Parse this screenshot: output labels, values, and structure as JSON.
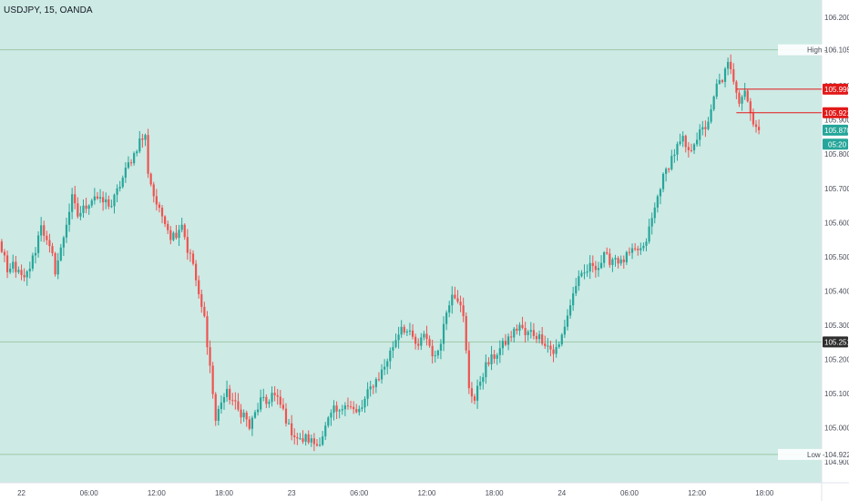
{
  "symbol_title": "USDJPY, 15, OANDA",
  "colors": {
    "background": "#cdeae5",
    "up": "#26a69a",
    "down": "#ef5350",
    "axis_bg": "#ffffff",
    "axis_text": "#4a4e59",
    "ref_line": "#9fc9a8",
    "red_tag": "#e31919",
    "green_tag": "#26a69a",
    "dark_tag": "#2e2e2e"
  },
  "chart_data": {
    "type": "candlestick",
    "title": "USDJPY, 15, OANDA",
    "ylim": [
      104.87,
      106.23
    ],
    "y_ticks": [
      "106.200",
      "106.100",
      "106.000",
      "105.900",
      "105.800",
      "105.700",
      "105.600",
      "105.500",
      "105.400",
      "105.300",
      "105.200",
      "105.100",
      "105.000",
      "104.900"
    ],
    "x_ticks": [
      {
        "label": "22",
        "bar": 8
      },
      {
        "label": "06:00",
        "bar": 32
      },
      {
        "label": "12:00",
        "bar": 56
      },
      {
        "label": "18:00",
        "bar": 80
      },
      {
        "label": "23",
        "bar": 104
      },
      {
        "label": "06:00",
        "bar": 128
      },
      {
        "label": "12:00",
        "bar": 152
      },
      {
        "label": "18:00",
        "bar": 176
      },
      {
        "label": "24",
        "bar": 200
      },
      {
        "label": "06:00",
        "bar": 224
      },
      {
        "label": "12:00",
        "bar": 248
      },
      {
        "label": "18:00",
        "bar": 272
      }
    ],
    "x_axis_offset_bars": 0,
    "close_anchors": [
      [
        0,
        105.54
      ],
      [
        2,
        105.5
      ],
      [
        3,
        105.44
      ],
      [
        5,
        105.48
      ],
      [
        7,
        105.45
      ],
      [
        9,
        105.43
      ],
      [
        11,
        105.47
      ],
      [
        13,
        105.52
      ],
      [
        15,
        105.6
      ],
      [
        17,
        105.54
      ],
      [
        19,
        105.5
      ],
      [
        20,
        105.46
      ],
      [
        22,
        105.52
      ],
      [
        24,
        105.6
      ],
      [
        26,
        105.67
      ],
      [
        28,
        105.62
      ],
      [
        30,
        105.64
      ],
      [
        32,
        105.66
      ],
      [
        34,
        105.68
      ],
      [
        36,
        105.66
      ],
      [
        38,
        105.66
      ],
      [
        40,
        105.65
      ],
      [
        42,
        105.69
      ],
      [
        44,
        105.73
      ],
      [
        46,
        105.77
      ],
      [
        48,
        105.8
      ],
      [
        50,
        105.84
      ],
      [
        52,
        105.85
      ],
      [
        53,
        105.75
      ],
      [
        55,
        105.68
      ],
      [
        57,
        105.63
      ],
      [
        59,
        105.61
      ],
      [
        61,
        105.56
      ],
      [
        63,
        105.57
      ],
      [
        65,
        105.6
      ],
      [
        67,
        105.52
      ],
      [
        69,
        105.48
      ],
      [
        71,
        105.38
      ],
      [
        73,
        105.32
      ],
      [
        75,
        105.18
      ],
      [
        76,
        105.1
      ],
      [
        77,
        105.02
      ],
      [
        79,
        105.08
      ],
      [
        81,
        105.1
      ],
      [
        83,
        105.08
      ],
      [
        85,
        105.05
      ],
      [
        87,
        105.04
      ],
      [
        89,
        105.0
      ],
      [
        91,
        105.04
      ],
      [
        93,
        105.08
      ],
      [
        95,
        105.07
      ],
      [
        97,
        105.1
      ],
      [
        99,
        105.08
      ],
      [
        101,
        105.05
      ],
      [
        103,
        105.0
      ],
      [
        105,
        104.98
      ],
      [
        107,
        104.96
      ],
      [
        109,
        104.97
      ],
      [
        111,
        104.96
      ],
      [
        113,
        104.95
      ],
      [
        115,
        104.98
      ],
      [
        117,
        105.02
      ],
      [
        119,
        105.05
      ],
      [
        121,
        105.04
      ],
      [
        123,
        105.08
      ],
      [
        125,
        105.06
      ],
      [
        127,
        105.04
      ],
      [
        129,
        105.06
      ],
      [
        131,
        105.1
      ],
      [
        133,
        105.13
      ],
      [
        135,
        105.15
      ],
      [
        137,
        105.18
      ],
      [
        139,
        105.22
      ],
      [
        141,
        105.26
      ],
      [
        143,
        105.3
      ],
      [
        145,
        105.28
      ],
      [
        147,
        105.26
      ],
      [
        149,
        105.23
      ],
      [
        151,
        105.28
      ],
      [
        153,
        105.24
      ],
      [
        155,
        105.2
      ],
      [
        157,
        105.26
      ],
      [
        159,
        105.34
      ],
      [
        161,
        105.4
      ],
      [
        163,
        105.38
      ],
      [
        165,
        105.32
      ],
      [
        166,
        105.22
      ],
      [
        167,
        105.12
      ],
      [
        169,
        105.08
      ],
      [
        171,
        105.14
      ],
      [
        173,
        105.18
      ],
      [
        175,
        105.2
      ],
      [
        177,
        105.22
      ],
      [
        179,
        105.24
      ],
      [
        181,
        105.26
      ],
      [
        183,
        105.28
      ],
      [
        185,
        105.3
      ],
      [
        187,
        105.27
      ],
      [
        189,
        105.28
      ],
      [
        191,
        105.27
      ],
      [
        193,
        105.26
      ],
      [
        195,
        105.24
      ],
      [
        197,
        105.22
      ],
      [
        199,
        105.24
      ],
      [
        201,
        105.3
      ],
      [
        203,
        105.36
      ],
      [
        205,
        105.42
      ],
      [
        207,
        105.44
      ],
      [
        209,
        105.46
      ],
      [
        211,
        105.48
      ],
      [
        213,
        105.47
      ],
      [
        215,
        105.5
      ],
      [
        217,
        105.49
      ],
      [
        219,
        105.5
      ],
      [
        221,
        105.48
      ],
      [
        223,
        105.5
      ],
      [
        225,
        105.51
      ],
      [
        227,
        105.52
      ],
      [
        229,
        105.52
      ],
      [
        231,
        105.58
      ],
      [
        233,
        105.64
      ],
      [
        235,
        105.71
      ],
      [
        237,
        105.75
      ],
      [
        239,
        105.79
      ],
      [
        241,
        105.82
      ],
      [
        243,
        105.84
      ],
      [
        245,
        105.8
      ],
      [
        247,
        105.84
      ],
      [
        249,
        105.86
      ],
      [
        251,
        105.88
      ],
      [
        253,
        105.92
      ],
      [
        255,
        106.0
      ],
      [
        257,
        106.02
      ],
      [
        259,
        106.06
      ],
      [
        261,
        106.02
      ],
      [
        263,
        105.96
      ],
      [
        265,
        105.99
      ],
      [
        267,
        105.92
      ],
      [
        268,
        105.9
      ],
      [
        270,
        105.87
      ]
    ],
    "price_lines": [
      {
        "label": "High",
        "value": "106.105",
        "price": 106.105
      },
      {
        "label": "Low",
        "value": "104.922",
        "price": 104.922
      },
      {
        "label": "",
        "value": "105.251",
        "price": 105.251
      }
    ],
    "price_tags": [
      {
        "value": "105.990",
        "price": 105.99,
        "color": "red",
        "line_from_bar": 262
      },
      {
        "value": "105.921",
        "price": 105.921,
        "color": "red",
        "line_from_bar": 262
      },
      {
        "value": "105.870",
        "price": 105.87,
        "color": "green"
      },
      {
        "value": "05:20",
        "price": 105.829,
        "color": "green"
      }
    ]
  }
}
